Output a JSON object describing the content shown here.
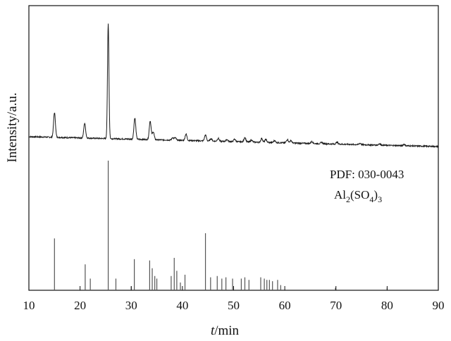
{
  "chart_data": {
    "type": "line",
    "xlabel_italic": "t",
    "xlabel_rest": "/min",
    "ylabel": "Intensity/a.u.",
    "xlim": [
      10,
      90
    ],
    "x_ticks": [
      "10",
      "20",
      "30",
      "40",
      "50",
      "60",
      "70",
      "80",
      "90"
    ],
    "grid": false,
    "annotation": {
      "line1": "PDF: 030-0043",
      "formula_parts": [
        "Al",
        "2",
        "(SO",
        "4",
        ")",
        "3"
      ]
    },
    "series": [
      {
        "style": "continuous-trace",
        "baseline_start": 0.2,
        "baseline_end": 0.0,
        "peaks": [
          {
            "x": 15.0,
            "y": 0.5
          },
          {
            "x": 20.9,
            "y": 0.3
          },
          {
            "x": 25.5,
            "y": 2.33
          },
          {
            "x": 30.7,
            "y": 0.43
          },
          {
            "x": 33.7,
            "y": 0.38
          },
          {
            "x": 34.3,
            "y": 0.16
          },
          {
            "x": 38.1,
            "y": 0.05
          },
          {
            "x": 38.6,
            "y": 0.05
          },
          {
            "x": 40.7,
            "y": 0.13
          },
          {
            "x": 44.5,
            "y": 0.12
          },
          {
            "x": 45.6,
            "y": 0.05
          },
          {
            "x": 47.0,
            "y": 0.06
          },
          {
            "x": 48.7,
            "y": 0.04
          },
          {
            "x": 50.2,
            "y": 0.05
          },
          {
            "x": 52.2,
            "y": 0.09
          },
          {
            "x": 53.5,
            "y": 0.04
          },
          {
            "x": 55.5,
            "y": 0.08
          },
          {
            "x": 56.3,
            "y": 0.06
          },
          {
            "x": 58.0,
            "y": 0.04
          },
          {
            "x": 60.5,
            "y": 0.07
          },
          {
            "x": 61.2,
            "y": 0.05
          },
          {
            "x": 65.3,
            "y": 0.04
          },
          {
            "x": 67.2,
            "y": 0.03
          },
          {
            "x": 70.2,
            "y": 0.04
          },
          {
            "x": 74.7,
            "y": 0.03
          },
          {
            "x": 78.5,
            "y": 0.03
          },
          {
            "x": 83.3,
            "y": 0.03
          }
        ]
      },
      {
        "style": "stick-pattern",
        "sticks": [
          {
            "x": 15.0,
            "y": 40
          },
          {
            "x": 21.0,
            "y": 20
          },
          {
            "x": 22.0,
            "y": 9
          },
          {
            "x": 25.5,
            "y": 100
          },
          {
            "x": 27.0,
            "y": 9
          },
          {
            "x": 30.0,
            "y": 3
          },
          {
            "x": 30.6,
            "y": 24
          },
          {
            "x": 33.6,
            "y": 23
          },
          {
            "x": 34.1,
            "y": 17
          },
          {
            "x": 34.6,
            "y": 11
          },
          {
            "x": 35.0,
            "y": 9
          },
          {
            "x": 37.8,
            "y": 11
          },
          {
            "x": 38.4,
            "y": 25
          },
          {
            "x": 38.9,
            "y": 15
          },
          {
            "x": 39.6,
            "y": 6
          },
          {
            "x": 40.5,
            "y": 12
          },
          {
            "x": 44.5,
            "y": 44
          },
          {
            "x": 45.5,
            "y": 10
          },
          {
            "x": 46.8,
            "y": 11
          },
          {
            "x": 47.7,
            "y": 9
          },
          {
            "x": 48.5,
            "y": 10
          },
          {
            "x": 49.8,
            "y": 9
          },
          {
            "x": 51.5,
            "y": 9
          },
          {
            "x": 52.2,
            "y": 10
          },
          {
            "x": 53.0,
            "y": 8
          },
          {
            "x": 55.3,
            "y": 10
          },
          {
            "x": 56.0,
            "y": 9
          },
          {
            "x": 56.5,
            "y": 8
          },
          {
            "x": 57.0,
            "y": 8
          },
          {
            "x": 57.6,
            "y": 7
          },
          {
            "x": 58.6,
            "y": 8
          },
          {
            "x": 59.2,
            "y": 4
          },
          {
            "x": 69.9,
            "y": 2
          },
          {
            "x": 80.0,
            "y": 2
          }
        ]
      }
    ]
  }
}
